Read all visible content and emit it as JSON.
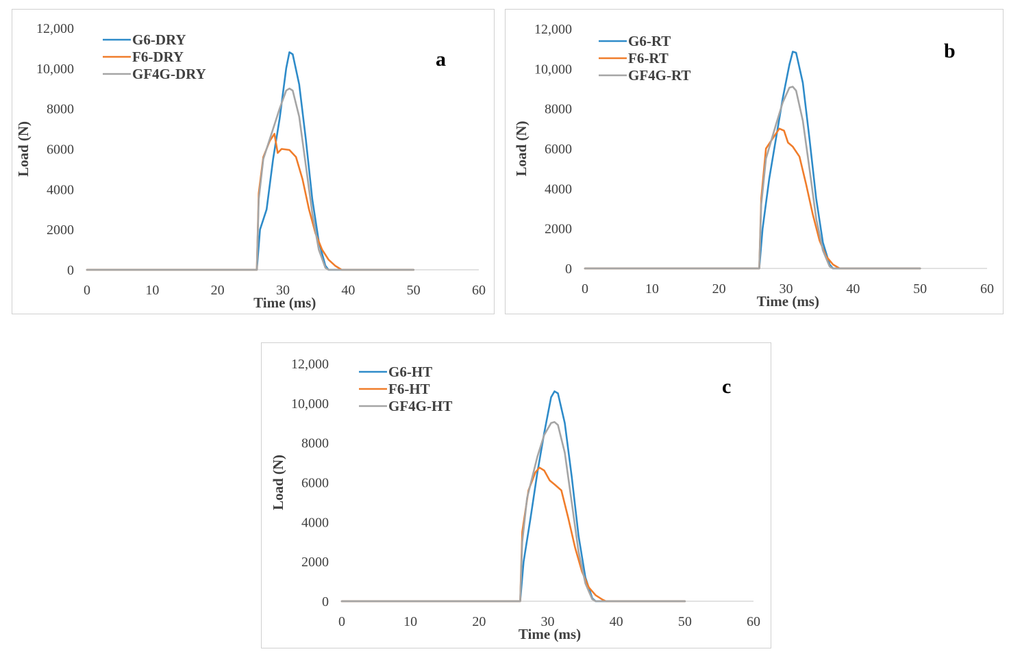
{
  "chart_data": [
    {
      "type": "line",
      "panel_label": "a",
      "xlabel": "Time (ms)",
      "ylabel": "Load (N)",
      "xlim": [
        0,
        60
      ],
      "ylim": [
        0,
        12000
      ],
      "x_ticks": [
        "0",
        "10",
        "20",
        "30",
        "40",
        "50",
        "60"
      ],
      "y_ticks": [
        "0",
        "2000",
        "4000",
        "6000",
        "8000",
        "10,000",
        "12,000"
      ],
      "legend_position": "top-left",
      "series": [
        {
          "name": "G6-DRY",
          "color": "#2e8bc9",
          "points": [
            [
              0,
              0
            ],
            [
              26,
              0
            ],
            [
              26.5,
              2000
            ],
            [
              27.5,
              3000
            ],
            [
              28.5,
              5500
            ],
            [
              29.5,
              7500
            ],
            [
              30.5,
              10000
            ],
            [
              31,
              10800
            ],
            [
              31.5,
              10700
            ],
            [
              32.5,
              9200
            ],
            [
              33.5,
              6500
            ],
            [
              34.5,
              3500
            ],
            [
              35.5,
              1400
            ],
            [
              36.5,
              200
            ],
            [
              37,
              0
            ],
            [
              50,
              0
            ]
          ]
        },
        {
          "name": "F6-DRY",
          "color": "#f07d2b",
          "points": [
            [
              0,
              0
            ],
            [
              26,
              0
            ],
            [
              26.3,
              3800
            ],
            [
              27,
              5600
            ],
            [
              28,
              6400
            ],
            [
              28.7,
              6750
            ],
            [
              29.2,
              5800
            ],
            [
              29.8,
              6000
            ],
            [
              31,
              5950
            ],
            [
              32,
              5600
            ],
            [
              33,
              4500
            ],
            [
              34,
              3000
            ],
            [
              35,
              1800
            ],
            [
              36,
              1000
            ],
            [
              37,
              500
            ],
            [
              38,
              200
            ],
            [
              39,
              0
            ],
            [
              50,
              0
            ]
          ]
        },
        {
          "name": "GF4G-DRY",
          "color": "#a5a5a5",
          "points": [
            [
              0,
              0
            ],
            [
              26,
              0
            ],
            [
              26.3,
              3500
            ],
            [
              27,
              5500
            ],
            [
              28.5,
              7000
            ],
            [
              29.5,
              8000
            ],
            [
              30.5,
              8900
            ],
            [
              31,
              9000
            ],
            [
              31.5,
              8900
            ],
            [
              32.5,
              7600
            ],
            [
              33.5,
              5200
            ],
            [
              34.5,
              2800
            ],
            [
              35.5,
              1000
            ],
            [
              36.5,
              100
            ],
            [
              37,
              0
            ],
            [
              50,
              0
            ]
          ]
        }
      ]
    },
    {
      "type": "line",
      "panel_label": "b",
      "xlabel": "Time (ms)",
      "ylabel": "Load (N)",
      "xlim": [
        0,
        60
      ],
      "ylim": [
        0,
        12000
      ],
      "x_ticks": [
        "0",
        "10",
        "20",
        "30",
        "40",
        "50",
        "60"
      ],
      "y_ticks": [
        "0",
        "2000",
        "4000",
        "6000",
        "8000",
        "10,000",
        "12,000"
      ],
      "legend_position": "top-left",
      "series": [
        {
          "name": "G6-RT",
          "color": "#2e8bc9",
          "points": [
            [
              0,
              0
            ],
            [
              26,
              0
            ],
            [
              26.5,
              2000
            ],
            [
              27.5,
              4500
            ],
            [
              28.5,
              6500
            ],
            [
              29.5,
              8500
            ],
            [
              30.5,
              10200
            ],
            [
              31,
              10850
            ],
            [
              31.5,
              10800
            ],
            [
              32.5,
              9300
            ],
            [
              33.5,
              6500
            ],
            [
              34.5,
              3500
            ],
            [
              35.5,
              1300
            ],
            [
              36.5,
              200
            ],
            [
              37,
              0
            ],
            [
              50,
              0
            ]
          ]
        },
        {
          "name": "F6-RT",
          "color": "#f07d2b",
          "points": [
            [
              0,
              0
            ],
            [
              26,
              0
            ],
            [
              26.3,
              3500
            ],
            [
              27,
              6000
            ],
            [
              28,
              6500
            ],
            [
              29,
              7000
            ],
            [
              29.7,
              6900
            ],
            [
              30.3,
              6300
            ],
            [
              31,
              6100
            ],
            [
              32,
              5600
            ],
            [
              33,
              4200
            ],
            [
              34,
              2700
            ],
            [
              35,
              1400
            ],
            [
              36,
              600
            ],
            [
              37,
              200
            ],
            [
              38,
              0
            ],
            [
              50,
              0
            ]
          ]
        },
        {
          "name": "GF4G-RT",
          "color": "#a5a5a5",
          "points": [
            [
              0,
              0
            ],
            [
              26,
              0
            ],
            [
              26.3,
              3200
            ],
            [
              27,
              5500
            ],
            [
              28.5,
              7200
            ],
            [
              29.5,
              8300
            ],
            [
              30.5,
              9050
            ],
            [
              31,
              9100
            ],
            [
              31.5,
              8900
            ],
            [
              32.5,
              7400
            ],
            [
              33.5,
              5000
            ],
            [
              34.5,
              2500
            ],
            [
              35.5,
              900
            ],
            [
              36.5,
              100
            ],
            [
              37,
              0
            ],
            [
              50,
              0
            ]
          ]
        }
      ]
    },
    {
      "type": "line",
      "panel_label": "c",
      "xlabel": "Time (ms)",
      "ylabel": "Load (N)",
      "xlim": [
        0,
        60
      ],
      "ylim": [
        0,
        12000
      ],
      "x_ticks": [
        "0",
        "10",
        "20",
        "30",
        "40",
        "50",
        "60"
      ],
      "y_ticks": [
        "0",
        "2000",
        "4000",
        "6000",
        "8000",
        "10,000",
        "12,000"
      ],
      "legend_position": "top-left",
      "series": [
        {
          "name": "G6-HT",
          "color": "#2e8bc9",
          "points": [
            [
              0,
              0
            ],
            [
              26,
              0
            ],
            [
              26.5,
              2000
            ],
            [
              27.5,
              4200
            ],
            [
              28.5,
              6500
            ],
            [
              29.5,
              8500
            ],
            [
              30.5,
              10300
            ],
            [
              31,
              10600
            ],
            [
              31.5,
              10500
            ],
            [
              32.5,
              9000
            ],
            [
              33.5,
              6300
            ],
            [
              34.5,
              3300
            ],
            [
              35.5,
              1200
            ],
            [
              36.5,
              150
            ],
            [
              37,
              0
            ],
            [
              50,
              0
            ]
          ]
        },
        {
          "name": "F6-HT",
          "color": "#f07d2b",
          "points": [
            [
              0,
              0
            ],
            [
              26,
              0
            ],
            [
              26.3,
              3500
            ],
            [
              27.2,
              5600
            ],
            [
              28.2,
              6500
            ],
            [
              28.8,
              6750
            ],
            [
              29.5,
              6600
            ],
            [
              30.3,
              6100
            ],
            [
              31,
              5900
            ],
            [
              32,
              5600
            ],
            [
              33,
              4200
            ],
            [
              34,
              2700
            ],
            [
              35,
              1500
            ],
            [
              36,
              700
            ],
            [
              37,
              300
            ],
            [
              38,
              80
            ],
            [
              38.5,
              0
            ],
            [
              50,
              0
            ]
          ]
        },
        {
          "name": "GF4G-HT",
          "color": "#a5a5a5",
          "points": [
            [
              0,
              0
            ],
            [
              26,
              0
            ],
            [
              26.3,
              3000
            ],
            [
              27,
              5200
            ],
            [
              28.5,
              7300
            ],
            [
              29.5,
              8400
            ],
            [
              30.5,
              9000
            ],
            [
              31,
              9050
            ],
            [
              31.5,
              8900
            ],
            [
              32.5,
              7500
            ],
            [
              33.5,
              5000
            ],
            [
              34.5,
              2500
            ],
            [
              35.5,
              900
            ],
            [
              36.5,
              100
            ],
            [
              37,
              0
            ],
            [
              50,
              0
            ]
          ]
        }
      ]
    }
  ]
}
